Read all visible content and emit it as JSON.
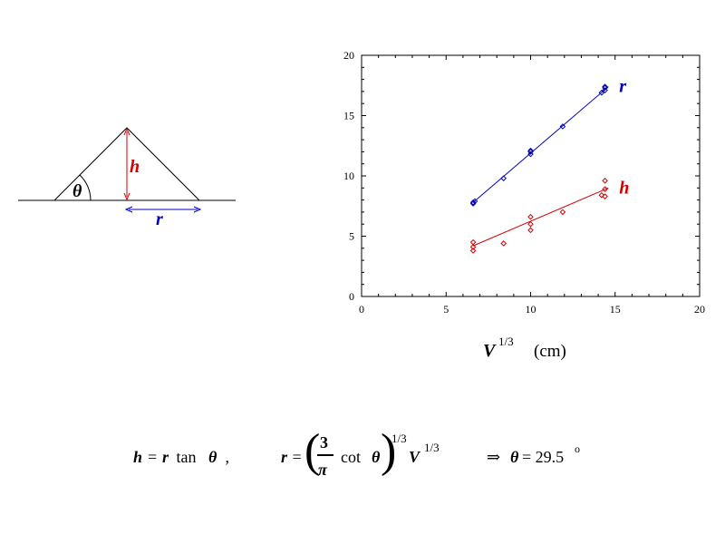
{
  "diagram": {
    "theta_label": "θ",
    "h_label": "h",
    "r_label": "r",
    "colors": {
      "h": "#d40000",
      "r": "#0000c0",
      "lines": "#000000"
    }
  },
  "chart_data": {
    "type": "scatter",
    "title": "",
    "xlabel_base": "V",
    "xlabel_exp": "1/3",
    "xlabel_unit": "(cm)",
    "ylabel": "",
    "xlim": [
      0,
      20
    ],
    "ylim": [
      0,
      20
    ],
    "x_ticks": [
      0,
      5,
      10,
      15,
      20
    ],
    "y_ticks": [
      0,
      5,
      10,
      15,
      20
    ],
    "grid": false,
    "series": [
      {
        "name": "r",
        "color": "#0000c0",
        "marker": "diamond",
        "points": [
          [
            6.6,
            7.7
          ],
          [
            6.6,
            7.8
          ],
          [
            6.7,
            7.9
          ],
          [
            8.4,
            9.8
          ],
          [
            10.0,
            11.8
          ],
          [
            10.0,
            12.0
          ],
          [
            10.0,
            12.1
          ],
          [
            11.9,
            14.1
          ],
          [
            14.2,
            16.9
          ],
          [
            14.4,
            17.1
          ],
          [
            14.4,
            17.3
          ],
          [
            14.4,
            17.4
          ]
        ],
        "fit": [
          [
            6.6,
            7.8
          ],
          [
            14.6,
            17.4
          ]
        ]
      },
      {
        "name": "h",
        "color": "#d40000",
        "marker": "diamond",
        "points": [
          [
            6.6,
            3.8
          ],
          [
            6.6,
            4.1
          ],
          [
            6.6,
            4.5
          ],
          [
            8.4,
            4.4
          ],
          [
            10.0,
            5.5
          ],
          [
            10.0,
            6.0
          ],
          [
            10.0,
            6.6
          ],
          [
            11.9,
            7.0
          ],
          [
            14.2,
            8.4
          ],
          [
            14.4,
            8.3
          ],
          [
            14.4,
            8.9
          ],
          [
            14.4,
            9.6
          ]
        ],
        "fit": [
          [
            6.6,
            4.2
          ],
          [
            14.6,
            9.0
          ]
        ]
      }
    ]
  },
  "formula": {
    "eq1_h": "h",
    "eq1_rest": "= ",
    "eq1_r": "r",
    "eq1_tan": " tan ",
    "eq1_theta": "θ",
    "eq1_comma": " ,",
    "eq2_r": "r",
    "eq2_eq": " =",
    "eq2_num": "3",
    "eq2_den": "π",
    "eq2_cot": "cot",
    "eq2_theta": "θ",
    "eq2_exp": "1/3",
    "eq2_V": "V",
    "eq2_Vexp": "1/3",
    "eq3_arrow": "⇒",
    "eq3_theta": "θ",
    "eq3_val": "= 29.5",
    "eq3_deg": "o"
  }
}
